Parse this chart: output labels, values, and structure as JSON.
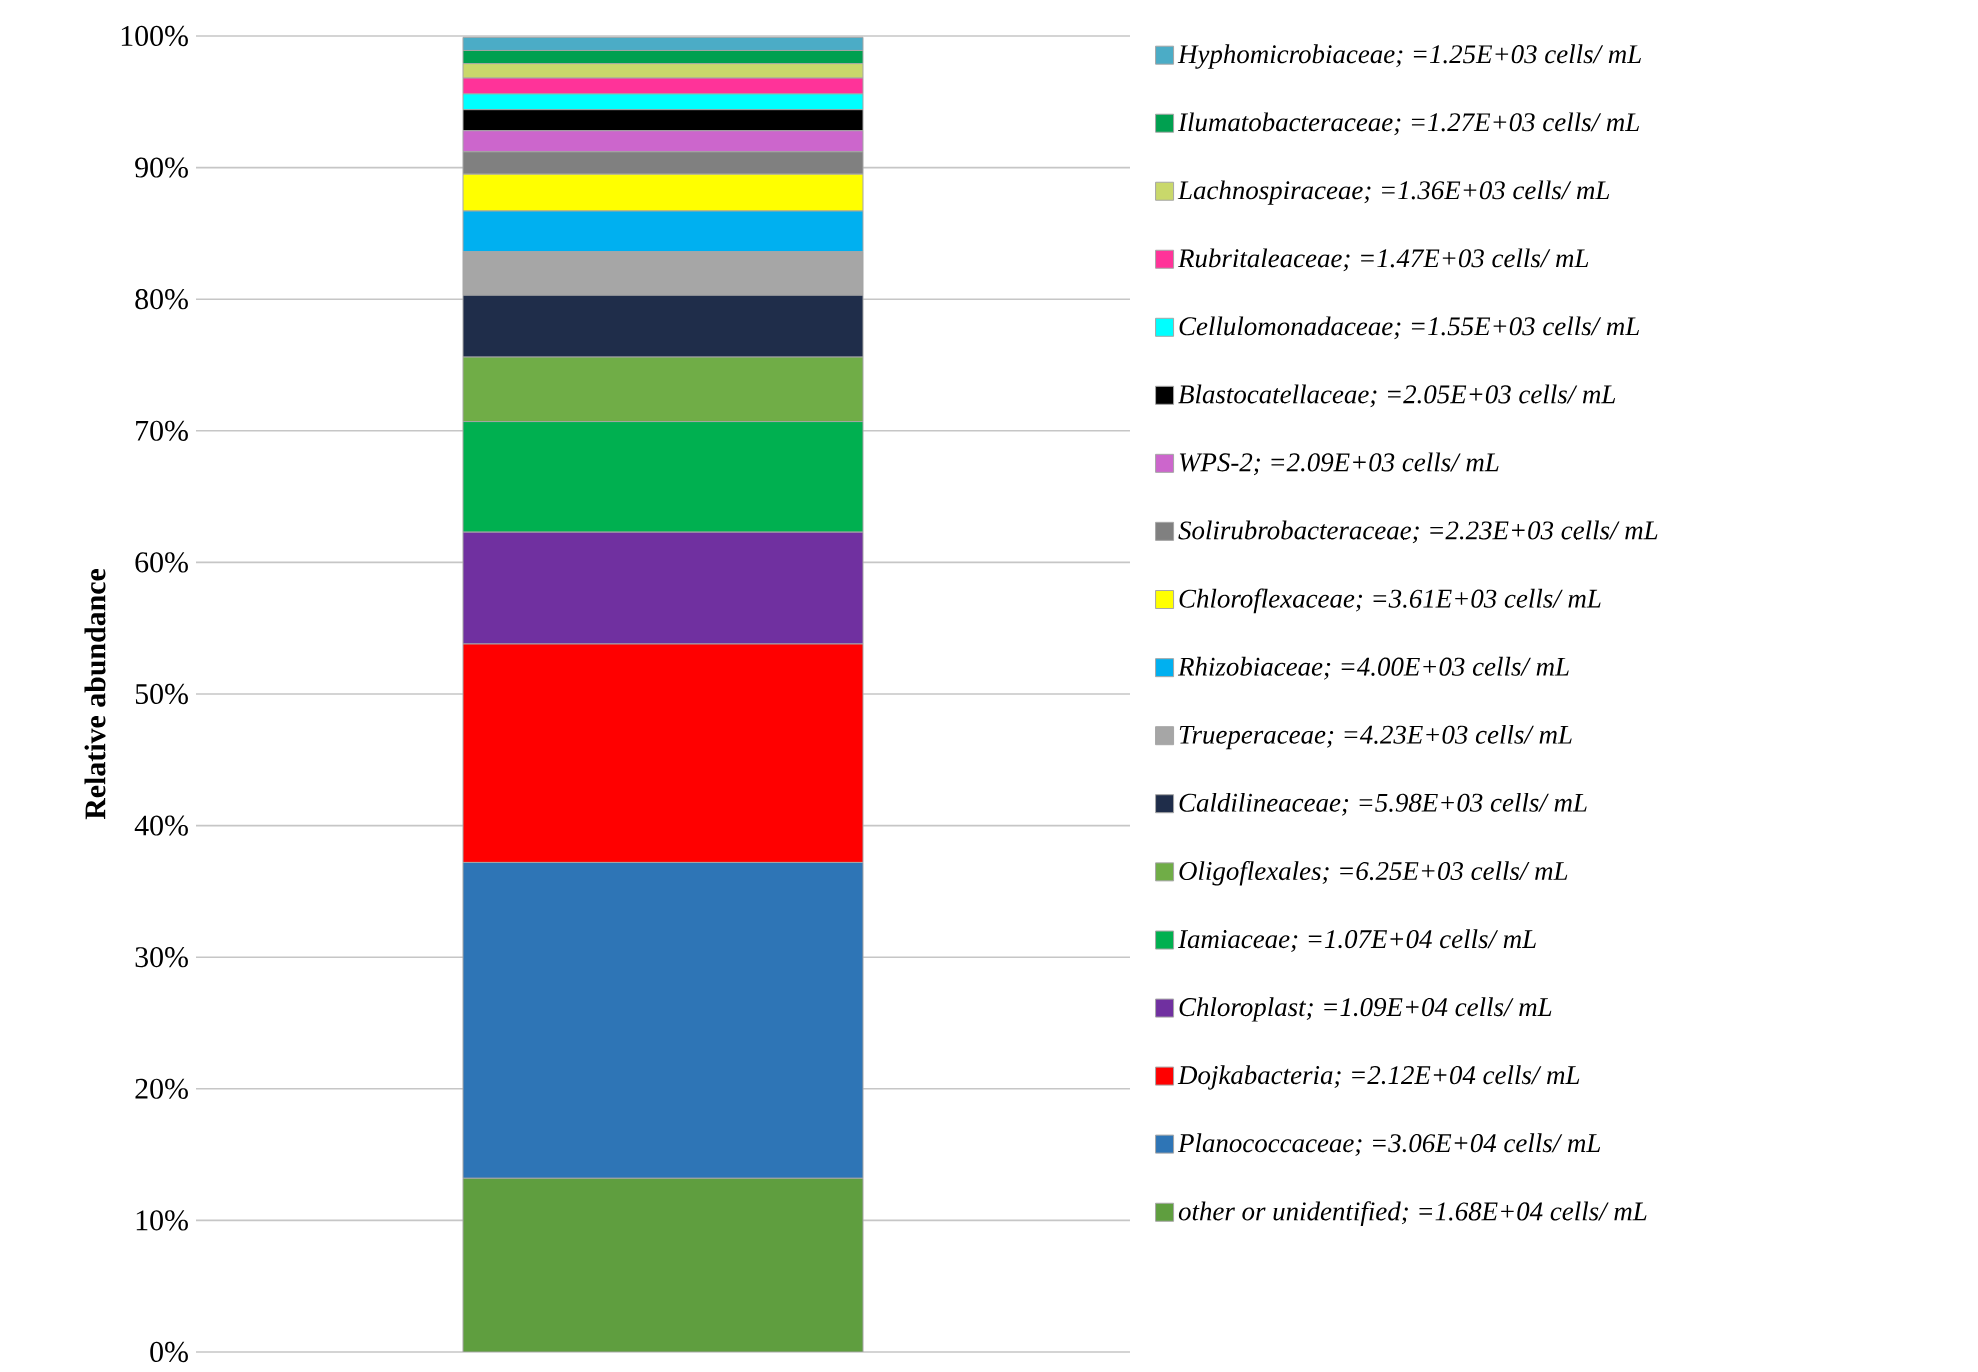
{
  "chart_data": {
    "type": "bar",
    "stacked": true,
    "ylabel": "Relative abundance",
    "categories": [
      null
    ],
    "ylim": [
      0,
      100
    ],
    "yticks": [
      {
        "value": 0,
        "label": "0%"
      },
      {
        "value": 10,
        "label": "10%"
      },
      {
        "value": 20,
        "label": "20%"
      },
      {
        "value": 30,
        "label": "30%"
      },
      {
        "value": 40,
        "label": "40%"
      },
      {
        "value": 50,
        "label": "50%"
      },
      {
        "value": 60,
        "label": "60%"
      },
      {
        "value": 70,
        "label": "70%"
      },
      {
        "value": 80,
        "label": "80%"
      },
      {
        "value": 90,
        "label": "90%"
      },
      {
        "value": 100,
        "label": "100%"
      }
    ],
    "grid": "y",
    "legend": "right",
    "series": [
      {
        "name": "other or unidentified; =1.68E+04 cells/ mL",
        "color": "#5f9e3f",
        "values": [
          13.2
        ]
      },
      {
        "name": "Planococcaceae; =3.06E+04 cells/ mL",
        "color": "#2e75b6",
        "values": [
          24.0
        ]
      },
      {
        "name": "Dojkabacteria; =2.12E+04 cells/ mL",
        "color": "#ff0000",
        "values": [
          16.6
        ]
      },
      {
        "name": "Chloroplast; =1.09E+04 cells/ mL",
        "color": "#7030a0",
        "values": [
          8.5
        ]
      },
      {
        "name": "Iamiaceae; =1.07E+04 cells/ mL",
        "color": "#00b050",
        "values": [
          8.4
        ]
      },
      {
        "name": "Oligoflexales; =6.25E+03 cells/ mL",
        "color": "#70ad47",
        "values": [
          4.9
        ]
      },
      {
        "name": "Caldilineaceae; =5.98E+03 cells/ mL",
        "color": "#1f2d4a",
        "values": [
          4.7
        ]
      },
      {
        "name": "Trueperaceae; =4.23E+03 cells/ mL",
        "color": "#a6a6a6",
        "values": [
          3.3
        ]
      },
      {
        "name": "Rhizobiaceae; =4.00E+03 cells/ mL",
        "color": "#00b0f0",
        "values": [
          3.1
        ]
      },
      {
        "name": "Chloroflexaceae; =3.61E+03 cells/ mL",
        "color": "#ffff00",
        "values": [
          2.8
        ]
      },
      {
        "name": "Solirubrobacteraceae; =2.23E+03 cells/ mL",
        "color": "#808080",
        "values": [
          1.7
        ]
      },
      {
        "name": "WPS-2; =2.09E+03 cells/ mL",
        "color": "#cc66cc",
        "values": [
          1.6
        ]
      },
      {
        "name": "Blastocatellaceae; =2.05E+03 cells/ mL",
        "color": "#000000",
        "values": [
          1.6
        ]
      },
      {
        "name": "Cellulomonadaceae; =1.55E+03 cells/ mL",
        "color": "#00ffff",
        "values": [
          1.2
        ]
      },
      {
        "name": "Rubritaleaceae; =1.47E+03 cells/ mL",
        "color": "#ff3399",
        "values": [
          1.2
        ]
      },
      {
        "name": "Lachnospiraceae; =1.36E+03 cells/ mL",
        "color": "#c9d86b",
        "values": [
          1.1
        ]
      },
      {
        "name": "Ilumatobacteraceae; =1.27E+03 cells/ mL",
        "color": "#00a050",
        "values": [
          1.0
        ]
      },
      {
        "name": "Hyphomicrobiaceae; =1.25E+03 cells/ mL",
        "color": "#4bacc6",
        "values": [
          1.0
        ]
      }
    ]
  }
}
